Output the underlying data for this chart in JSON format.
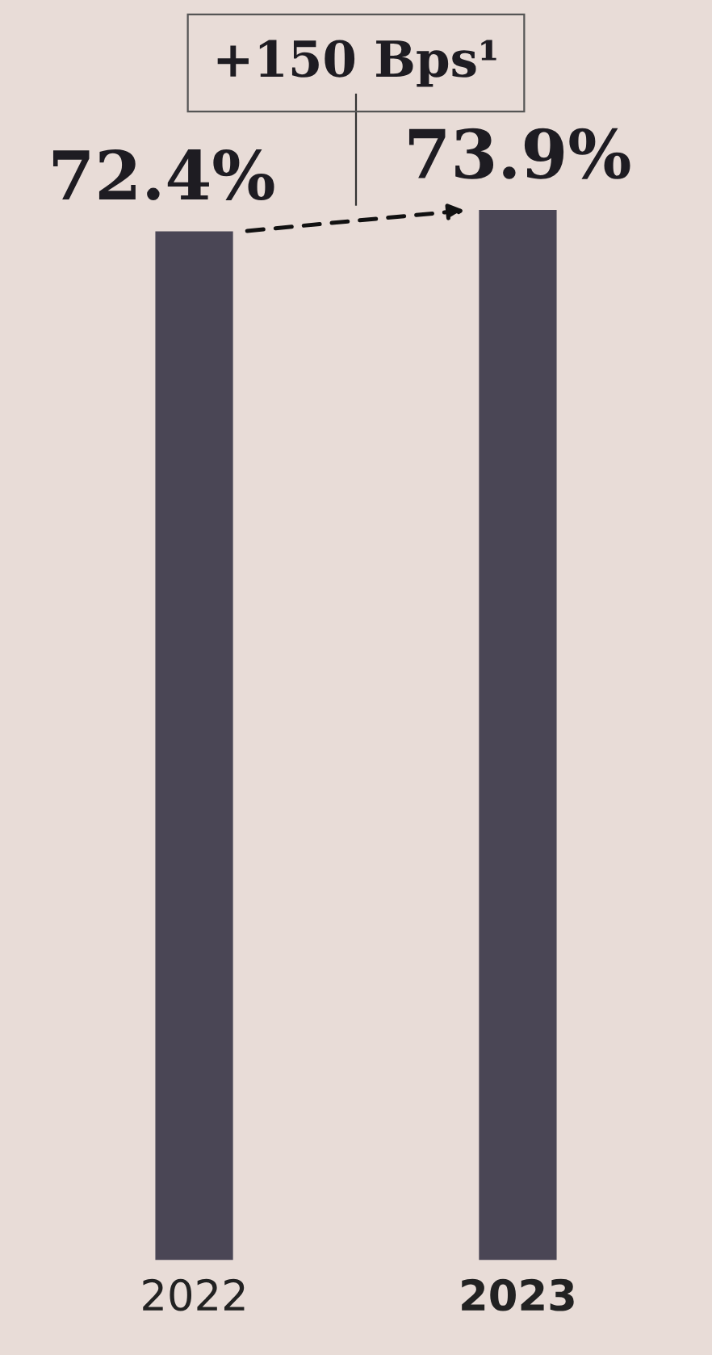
{
  "chart_data": {
    "type": "bar",
    "categories": [
      "2022",
      "2023"
    ],
    "values": [
      72.4,
      73.9
    ],
    "value_labels": [
      "72.4%",
      "73.9%"
    ],
    "color": "#4a4655",
    "annotations": [
      "+150 Bps¹"
    ],
    "grid": false
  }
}
